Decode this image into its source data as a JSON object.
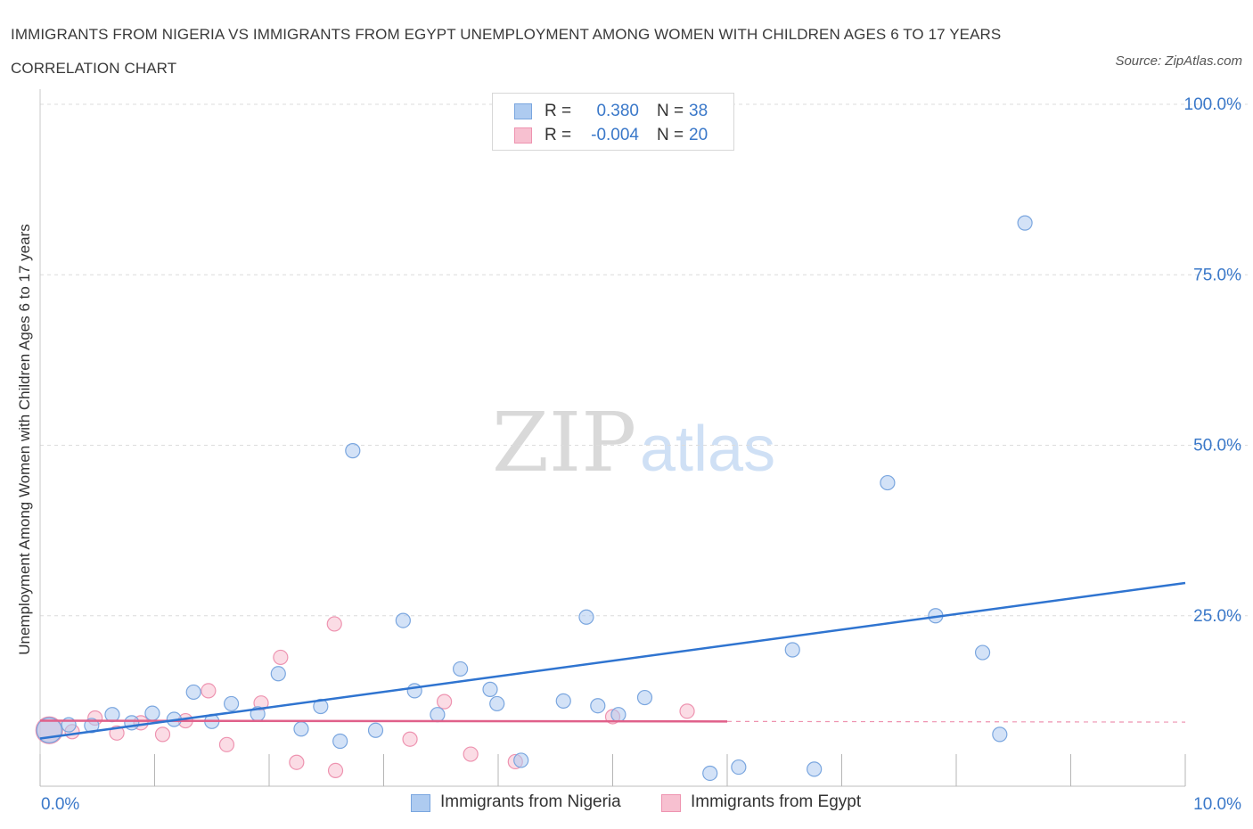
{
  "header": {
    "title": "IMMIGRANTS FROM NIGERIA VS IMMIGRANTS FROM EGYPT UNEMPLOYMENT AMONG WOMEN WITH CHILDREN AGES 6 TO 17 YEARS CORRELATION CHART",
    "source": "Source: ZipAtlas.com"
  },
  "watermark": {
    "zip": "ZIP",
    "atlas": "atlas"
  },
  "legend": {
    "nigeria": {
      "r_label": "R =",
      "r_value": "0.380",
      "n_label": "N =",
      "n_value": "38"
    },
    "egypt": {
      "r_label": "R =",
      "r_value": "-0.004",
      "n_label": "N =",
      "n_value": "20"
    }
  },
  "colors": {
    "nigeria_fill": "#aecbf0",
    "nigeria_stroke": "#7aa6df",
    "nigeria_line": "#2f74d0",
    "egypt_fill": "#f7c0d0",
    "egypt_stroke": "#ee93b0",
    "egypt_line": "#e0608a",
    "tick_label": "#3a78c9",
    "grid": "#dcdcdc"
  },
  "chart_data": {
    "type": "scatter",
    "title": "IMMIGRANTS FROM NIGERIA VS IMMIGRANTS FROM EGYPT UNEMPLOYMENT AMONG WOMEN WITH CHILDREN AGES 6 TO 17 YEARS CORRELATION CHART",
    "xlabel": "",
    "ylabel": "Unemployment Among Women with Children Ages 6 to 17 years",
    "xlim": [
      0,
      10
    ],
    "ylim": [
      0,
      100
    ],
    "x_tick_labels": [
      "0.0%",
      "10.0%"
    ],
    "y_tick_labels": [
      "25.0%",
      "50.0%",
      "75.0%",
      "100.0%"
    ],
    "y_ticks": [
      25,
      50,
      75,
      100
    ],
    "legend_position": "bottom-center",
    "series": [
      {
        "name": "Immigrants from Nigeria",
        "color": "#2f74d0",
        "trend": {
          "x": [
            0,
            10
          ],
          "y": [
            7.0,
            29.8
          ]
        },
        "points": [
          {
            "x": 0.08,
            "y": 8.2,
            "big": true
          },
          {
            "x": 0.25,
            "y": 9.0
          },
          {
            "x": 0.45,
            "y": 8.9
          },
          {
            "x": 0.63,
            "y": 10.5
          },
          {
            "x": 0.8,
            "y": 9.3
          },
          {
            "x": 0.98,
            "y": 10.7
          },
          {
            "x": 1.17,
            "y": 9.8
          },
          {
            "x": 1.34,
            "y": 13.8
          },
          {
            "x": 1.5,
            "y": 9.5
          },
          {
            "x": 1.67,
            "y": 12.1
          },
          {
            "x": 1.9,
            "y": 10.6
          },
          {
            "x": 2.08,
            "y": 16.5
          },
          {
            "x": 2.28,
            "y": 8.4
          },
          {
            "x": 2.45,
            "y": 11.7
          },
          {
            "x": 2.62,
            "y": 6.6
          },
          {
            "x": 2.73,
            "y": 49.2
          },
          {
            "x": 2.93,
            "y": 8.2
          },
          {
            "x": 3.17,
            "y": 24.3
          },
          {
            "x": 3.27,
            "y": 14.0
          },
          {
            "x": 3.47,
            "y": 10.5
          },
          {
            "x": 3.67,
            "y": 17.2
          },
          {
            "x": 3.93,
            "y": 14.2
          },
          {
            "x": 3.99,
            "y": 12.1
          },
          {
            "x": 4.2,
            "y": 3.8
          },
          {
            "x": 4.57,
            "y": 12.5
          },
          {
            "x": 4.77,
            "y": 24.8
          },
          {
            "x": 4.87,
            "y": 11.8
          },
          {
            "x": 5.05,
            "y": 10.5
          },
          {
            "x": 5.28,
            "y": 13.0
          },
          {
            "x": 5.85,
            "y": 1.9
          },
          {
            "x": 6.1,
            "y": 2.8
          },
          {
            "x": 6.57,
            "y": 20.0
          },
          {
            "x": 6.76,
            "y": 2.5
          },
          {
            "x": 7.4,
            "y": 44.5
          },
          {
            "x": 7.82,
            "y": 25.0
          },
          {
            "x": 8.23,
            "y": 19.6
          },
          {
            "x": 8.38,
            "y": 7.6
          },
          {
            "x": 8.6,
            "y": 82.6
          }
        ]
      },
      {
        "name": "Immigrants from Egypt",
        "color": "#e0608a",
        "trend": {
          "x": [
            0,
            6.0
          ],
          "y": [
            9.6,
            9.5
          ]
        },
        "trend_dashed_extension": {
          "x": [
            6.0,
            10
          ],
          "y": [
            9.5,
            9.4
          ]
        },
        "points": [
          {
            "x": 0.08,
            "y": 8.2,
            "big": true
          },
          {
            "x": 0.28,
            "y": 8.0
          },
          {
            "x": 0.48,
            "y": 10.0
          },
          {
            "x": 0.67,
            "y": 7.8
          },
          {
            "x": 0.88,
            "y": 9.3
          },
          {
            "x": 1.07,
            "y": 7.6
          },
          {
            "x": 1.27,
            "y": 9.6
          },
          {
            "x": 1.47,
            "y": 14.0
          },
          {
            "x": 1.63,
            "y": 6.1
          },
          {
            "x": 1.93,
            "y": 12.2
          },
          {
            "x": 2.1,
            "y": 18.9
          },
          {
            "x": 2.24,
            "y": 3.5
          },
          {
            "x": 2.58,
            "y": 2.3
          },
          {
            "x": 2.57,
            "y": 23.8
          },
          {
            "x": 3.23,
            "y": 6.9
          },
          {
            "x": 3.53,
            "y": 12.4
          },
          {
            "x": 3.76,
            "y": 4.7
          },
          {
            "x": 4.15,
            "y": 3.6
          },
          {
            "x": 5.0,
            "y": 10.2
          },
          {
            "x": 5.65,
            "y": 11.0
          }
        ]
      }
    ]
  }
}
